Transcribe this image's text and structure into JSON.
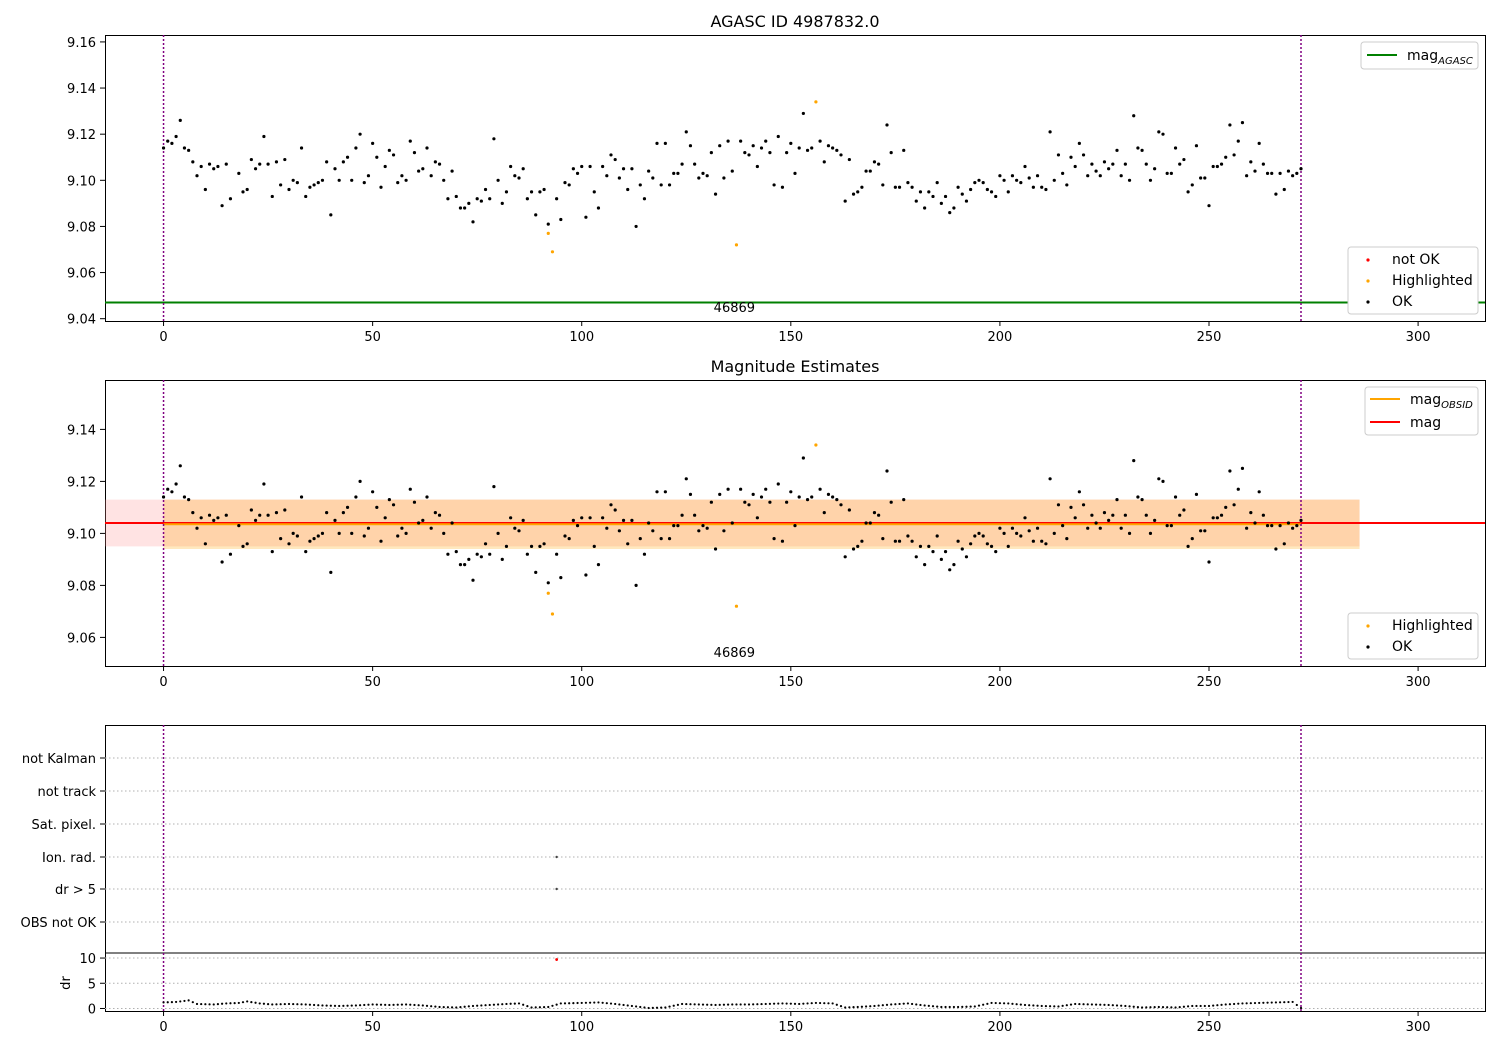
{
  "figure": {
    "panel1_title": "AGASC ID 4987832.0",
    "panel2_title": "Magnitude Estimates",
    "obsid_label": "46869"
  },
  "legends": {
    "p1_lines": [
      {
        "base": "mag",
        "sub": "AGASC",
        "color": "#008000"
      }
    ],
    "p1_points": [
      {
        "label": "not OK",
        "color": "#ff0000"
      },
      {
        "label": "Highlighted",
        "color": "#ffa500"
      },
      {
        "label": "OK",
        "color": "#000000"
      }
    ],
    "p2_lines": [
      {
        "base": "mag",
        "sub": "OBSID",
        "color": "#ffa500"
      },
      {
        "base": "mag",
        "sub": "",
        "color": "#ff0000"
      }
    ],
    "p2_points": [
      {
        "label": "Highlighted",
        "color": "#ffa500"
      },
      {
        "label": "OK",
        "color": "#000000"
      }
    ]
  },
  "chart_data": [
    {
      "type": "scatter",
      "title": "AGASC ID 4987832.0",
      "xlim": [
        -14,
        316
      ],
      "ylim": [
        9.039,
        9.163
      ],
      "xticks": [
        0,
        50,
        100,
        150,
        200,
        250,
        300
      ],
      "yticks": [
        9.04,
        9.06,
        9.08,
        9.1,
        9.12,
        9.14,
        9.16
      ],
      "mag_agasc": 9.047,
      "obs_bounds": [
        0,
        272
      ],
      "obsid": "46869",
      "highlighted_points": [
        {
          "x": 92,
          "y": 9.077
        },
        {
          "x": 93,
          "y": 9.069
        },
        {
          "x": 137,
          "y": 9.072
        },
        {
          "x": 156,
          "y": 9.134
        }
      ],
      "not_ok_points": [],
      "ok_series": "mag_series"
    },
    {
      "type": "scatter",
      "title": "Magnitude Estimates",
      "xlim": [
        -14,
        316
      ],
      "ylim": [
        9.049,
        9.159
      ],
      "xticks": [
        0,
        50,
        100,
        150,
        200,
        250,
        300
      ],
      "yticks": [
        9.06,
        9.08,
        9.1,
        9.12,
        9.14
      ],
      "mag_obsid": 9.1035,
      "mag": 9.104,
      "obsid_band": [
        9.094,
        9.113
      ],
      "mag_band": [
        9.095,
        9.113
      ],
      "band_x": [
        0,
        286
      ],
      "mag_band_x": [
        -14,
        286
      ],
      "obsid": "46869",
      "highlighted_points": [
        {
          "x": 92,
          "y": 9.077
        },
        {
          "x": 93,
          "y": 9.069
        },
        {
          "x": 137,
          "y": 9.072
        },
        {
          "x": 156,
          "y": 9.134
        }
      ],
      "ok_series": "mag_series"
    },
    {
      "type": "scatter",
      "title": "",
      "xlim": [
        -14,
        316
      ],
      "xticks": [
        0,
        50,
        100,
        150,
        200,
        250,
        300
      ],
      "flags": [
        "not Kalman",
        "not track",
        "Sat. pixel.",
        "Ion. rad.",
        "dr > 5",
        "OBS not OK"
      ],
      "flag_points": [
        {
          "flag": "Ion. rad.",
          "x": 94
        },
        {
          "flag": "dr > 5",
          "x": 94
        }
      ],
      "dr_ylabel": "dr",
      "dr_ylim": [
        -0.5,
        11
      ],
      "dr_yticks": [
        0,
        5,
        10
      ],
      "dr_outlier": {
        "x": 94,
        "y": 9.7
      },
      "dr_series": "dr_series"
    }
  ],
  "mag_series": [
    [
      0,
      9.114
    ],
    [
      1,
      9.117
    ],
    [
      2,
      9.116
    ],
    [
      3,
      9.119
    ],
    [
      4,
      9.126
    ],
    [
      5,
      9.114
    ],
    [
      6,
      9.113
    ],
    [
      7,
      9.108
    ],
    [
      8,
      9.102
    ],
    [
      9,
      9.106
    ],
    [
      10,
      9.096
    ],
    [
      11,
      9.107
    ],
    [
      12,
      9.105
    ],
    [
      13,
      9.106
    ],
    [
      14,
      9.089
    ],
    [
      15,
      9.107
    ],
    [
      16,
      9.092
    ],
    [
      18,
      9.103
    ],
    [
      19,
      9.095
    ],
    [
      20,
      9.096
    ],
    [
      21,
      9.109
    ],
    [
      22,
      9.105
    ],
    [
      23,
      9.107
    ],
    [
      24,
      9.119
    ],
    [
      25,
      9.107
    ],
    [
      26,
      9.093
    ],
    [
      27,
      9.108
    ],
    [
      28,
      9.098
    ],
    [
      29,
      9.109
    ],
    [
      30,
      9.096
    ],
    [
      31,
      9.1
    ],
    [
      32,
      9.099
    ],
    [
      33,
      9.114
    ],
    [
      34,
      9.093
    ],
    [
      35,
      9.097
    ],
    [
      36,
      9.098
    ],
    [
      37,
      9.099
    ],
    [
      38,
      9.1
    ],
    [
      39,
      9.108
    ],
    [
      40,
      9.085
    ],
    [
      41,
      9.105
    ],
    [
      42,
      9.1
    ],
    [
      43,
      9.108
    ],
    [
      44,
      9.11
    ],
    [
      45,
      9.1
    ],
    [
      46,
      9.114
    ],
    [
      47,
      9.12
    ],
    [
      48,
      9.099
    ],
    [
      49,
      9.102
    ],
    [
      50,
      9.116
    ],
    [
      51,
      9.11
    ],
    [
      52,
      9.097
    ],
    [
      53,
      9.106
    ],
    [
      54,
      9.113
    ],
    [
      55,
      9.111
    ],
    [
      56,
      9.099
    ],
    [
      57,
      9.102
    ],
    [
      58,
      9.1
    ],
    [
      59,
      9.117
    ],
    [
      60,
      9.112
    ],
    [
      61,
      9.104
    ],
    [
      62,
      9.105
    ],
    [
      63,
      9.114
    ],
    [
      64,
      9.102
    ],
    [
      65,
      9.108
    ],
    [
      66,
      9.107
    ],
    [
      67,
      9.1
    ],
    [
      68,
      9.092
    ],
    [
      69,
      9.104
    ],
    [
      70,
      9.093
    ],
    [
      71,
      9.088
    ],
    [
      72,
      9.088
    ],
    [
      73,
      9.09
    ],
    [
      74,
      9.082
    ],
    [
      75,
      9.092
    ],
    [
      76,
      9.091
    ],
    [
      77,
      9.096
    ],
    [
      78,
      9.092
    ],
    [
      79,
      9.118
    ],
    [
      80,
      9.1
    ],
    [
      81,
      9.09
    ],
    [
      82,
      9.095
    ],
    [
      83,
      9.106
    ],
    [
      84,
      9.102
    ],
    [
      85,
      9.101
    ],
    [
      86,
      9.105
    ],
    [
      87,
      9.092
    ],
    [
      88,
      9.095
    ],
    [
      89,
      9.085
    ],
    [
      90,
      9.095
    ],
    [
      91,
      9.096
    ],
    [
      92,
      9.081
    ],
    [
      94,
      9.092
    ],
    [
      95,
      9.083
    ],
    [
      96,
      9.099
    ],
    [
      97,
      9.098
    ],
    [
      98,
      9.105
    ],
    [
      99,
      9.103
    ],
    [
      100,
      9.106
    ],
    [
      101,
      9.084
    ],
    [
      102,
      9.106
    ],
    [
      103,
      9.095
    ],
    [
      104,
      9.088
    ],
    [
      105,
      9.106
    ],
    [
      106,
      9.102
    ],
    [
      107,
      9.111
    ],
    [
      108,
      9.109
    ],
    [
      109,
      9.101
    ],
    [
      110,
      9.105
    ],
    [
      111,
      9.096
    ],
    [
      112,
      9.105
    ],
    [
      113,
      9.08
    ],
    [
      114,
      9.098
    ],
    [
      115,
      9.092
    ],
    [
      116,
      9.104
    ],
    [
      117,
      9.101
    ],
    [
      118,
      9.116
    ],
    [
      119,
      9.098
    ],
    [
      120,
      9.116
    ],
    [
      121,
      9.098
    ],
    [
      122,
      9.103
    ],
    [
      123,
      9.103
    ],
    [
      124,
      9.107
    ],
    [
      125,
      9.121
    ],
    [
      126,
      9.115
    ],
    [
      127,
      9.107
    ],
    [
      128,
      9.101
    ],
    [
      129,
      9.103
    ],
    [
      130,
      9.102
    ],
    [
      131,
      9.112
    ],
    [
      132,
      9.094
    ],
    [
      133,
      9.115
    ],
    [
      134,
      9.101
    ],
    [
      135,
      9.117
    ],
    [
      136,
      9.104
    ],
    [
      138,
      9.117
    ],
    [
      139,
      9.112
    ],
    [
      140,
      9.111
    ],
    [
      141,
      9.115
    ],
    [
      142,
      9.106
    ],
    [
      143,
      9.114
    ],
    [
      144,
      9.117
    ],
    [
      145,
      9.112
    ],
    [
      146,
      9.098
    ],
    [
      147,
      9.119
    ],
    [
      148,
      9.097
    ],
    [
      149,
      9.112
    ],
    [
      150,
      9.116
    ],
    [
      151,
      9.103
    ],
    [
      152,
      9.114
    ],
    [
      153,
      9.129
    ],
    [
      154,
      9.113
    ],
    [
      155,
      9.114
    ],
    [
      157,
      9.117
    ],
    [
      158,
      9.108
    ],
    [
      159,
      9.115
    ],
    [
      160,
      9.114
    ],
    [
      161,
      9.113
    ],
    [
      162,
      9.111
    ],
    [
      163,
      9.091
    ],
    [
      164,
      9.109
    ],
    [
      165,
      9.094
    ],
    [
      166,
      9.095
    ],
    [
      167,
      9.097
    ],
    [
      168,
      9.104
    ],
    [
      169,
      9.104
    ],
    [
      170,
      9.108
    ],
    [
      171,
      9.107
    ],
    [
      172,
      9.098
    ],
    [
      173,
      9.124
    ],
    [
      174,
      9.112
    ],
    [
      175,
      9.097
    ],
    [
      176,
      9.097
    ],
    [
      177,
      9.113
    ],
    [
      178,
      9.099
    ],
    [
      179,
      9.097
    ],
    [
      180,
      9.091
    ],
    [
      181,
      9.095
    ],
    [
      182,
      9.088
    ],
    [
      183,
      9.095
    ],
    [
      184,
      9.093
    ],
    [
      185,
      9.099
    ],
    [
      186,
      9.09
    ],
    [
      187,
      9.093
    ],
    [
      188,
      9.086
    ],
    [
      189,
      9.088
    ],
    [
      190,
      9.097
    ],
    [
      191,
      9.094
    ],
    [
      192,
      9.091
    ],
    [
      193,
      9.096
    ],
    [
      194,
      9.099
    ],
    [
      195,
      9.1
    ],
    [
      196,
      9.099
    ],
    [
      197,
      9.096
    ],
    [
      198,
      9.095
    ],
    [
      199,
      9.093
    ],
    [
      200,
      9.102
    ],
    [
      201,
      9.1
    ],
    [
      202,
      9.095
    ],
    [
      203,
      9.102
    ],
    [
      204,
      9.1
    ],
    [
      205,
      9.099
    ],
    [
      206,
      9.106
    ],
    [
      207,
      9.101
    ],
    [
      208,
      9.097
    ],
    [
      209,
      9.102
    ],
    [
      210,
      9.097
    ],
    [
      211,
      9.096
    ],
    [
      212,
      9.121
    ],
    [
      213,
      9.1
    ],
    [
      214,
      9.111
    ],
    [
      215,
      9.103
    ],
    [
      216,
      9.098
    ],
    [
      217,
      9.11
    ],
    [
      218,
      9.106
    ],
    [
      219,
      9.116
    ],
    [
      220,
      9.111
    ],
    [
      221,
      9.102
    ],
    [
      222,
      9.107
    ],
    [
      223,
      9.104
    ],
    [
      224,
      9.102
    ],
    [
      225,
      9.108
    ],
    [
      226,
      9.105
    ],
    [
      227,
      9.107
    ],
    [
      228,
      9.113
    ],
    [
      229,
      9.102
    ],
    [
      230,
      9.107
    ],
    [
      231,
      9.1
    ],
    [
      232,
      9.128
    ],
    [
      233,
      9.114
    ],
    [
      234,
      9.113
    ],
    [
      235,
      9.107
    ],
    [
      236,
      9.1
    ],
    [
      237,
      9.105
    ],
    [
      238,
      9.121
    ],
    [
      239,
      9.12
    ],
    [
      240,
      9.103
    ],
    [
      241,
      9.103
    ],
    [
      242,
      9.114
    ],
    [
      243,
      9.107
    ],
    [
      244,
      9.109
    ],
    [
      245,
      9.095
    ],
    [
      246,
      9.098
    ],
    [
      247,
      9.115
    ],
    [
      248,
      9.101
    ],
    [
      249,
      9.101
    ],
    [
      250,
      9.089
    ],
    [
      251,
      9.106
    ],
    [
      252,
      9.106
    ],
    [
      253,
      9.107
    ],
    [
      254,
      9.11
    ],
    [
      255,
      9.124
    ],
    [
      256,
      9.111
    ],
    [
      257,
      9.117
    ],
    [
      258,
      9.125
    ],
    [
      259,
      9.102
    ],
    [
      260,
      9.108
    ],
    [
      261,
      9.104
    ],
    [
      262,
      9.116
    ],
    [
      263,
      9.107
    ],
    [
      264,
      9.103
    ],
    [
      265,
      9.103
    ],
    [
      266,
      9.094
    ],
    [
      267,
      9.103
    ],
    [
      268,
      9.096
    ],
    [
      269,
      9.104
    ],
    [
      270,
      9.102
    ],
    [
      271,
      9.103
    ],
    [
      272,
      9.105
    ]
  ],
  "dr_series": [
    [
      0,
      1.2
    ],
    [
      3,
      1.3
    ],
    [
      6,
      1.6
    ],
    [
      8,
      0.9
    ],
    [
      12,
      0.8
    ],
    [
      15,
      1.0
    ],
    [
      18,
      1.1
    ],
    [
      20,
      1.4
    ],
    [
      23,
      1.0
    ],
    [
      26,
      0.8
    ],
    [
      30,
      0.9
    ],
    [
      34,
      0.8
    ],
    [
      38,
      0.6
    ],
    [
      42,
      0.5
    ],
    [
      46,
      0.6
    ],
    [
      50,
      0.8
    ],
    [
      54,
      0.7
    ],
    [
      58,
      0.8
    ],
    [
      62,
      0.6
    ],
    [
      66,
      0.3
    ],
    [
      70,
      0.2
    ],
    [
      74,
      0.5
    ],
    [
      78,
      0.7
    ],
    [
      82,
      0.9
    ],
    [
      85,
      1.0
    ],
    [
      88,
      0.2
    ],
    [
      92,
      0.3
    ],
    [
      95,
      1.0
    ],
    [
      100,
      1.1
    ],
    [
      104,
      1.2
    ],
    [
      108,
      0.9
    ],
    [
      112,
      0.5
    ],
    [
      116,
      0.1
    ],
    [
      120,
      0.2
    ],
    [
      124,
      0.9
    ],
    [
      128,
      0.8
    ],
    [
      132,
      0.7
    ],
    [
      136,
      0.8
    ],
    [
      140,
      0.8
    ],
    [
      144,
      0.9
    ],
    [
      148,
      1.0
    ],
    [
      152,
      0.9
    ],
    [
      156,
      1.1
    ],
    [
      160,
      1.0
    ],
    [
      163,
      0.2
    ],
    [
      166,
      0.3
    ],
    [
      170,
      0.5
    ],
    [
      174,
      0.8
    ],
    [
      178,
      1.0
    ],
    [
      182,
      0.6
    ],
    [
      186,
      0.3
    ],
    [
      190,
      0.3
    ],
    [
      194,
      0.4
    ],
    [
      198,
      1.1
    ],
    [
      202,
      1.0
    ],
    [
      206,
      0.7
    ],
    [
      210,
      0.5
    ],
    [
      214,
      0.4
    ],
    [
      218,
      0.9
    ],
    [
      222,
      0.8
    ],
    [
      226,
      0.7
    ],
    [
      230,
      0.5
    ],
    [
      234,
      0.2
    ],
    [
      238,
      0.3
    ],
    [
      242,
      0.2
    ],
    [
      246,
      0.5
    ],
    [
      250,
      0.5
    ],
    [
      254,
      0.8
    ],
    [
      258,
      1.0
    ],
    [
      262,
      1.1
    ],
    [
      266,
      1.2
    ],
    [
      270,
      1.3
    ],
    [
      272,
      0.1
    ]
  ]
}
